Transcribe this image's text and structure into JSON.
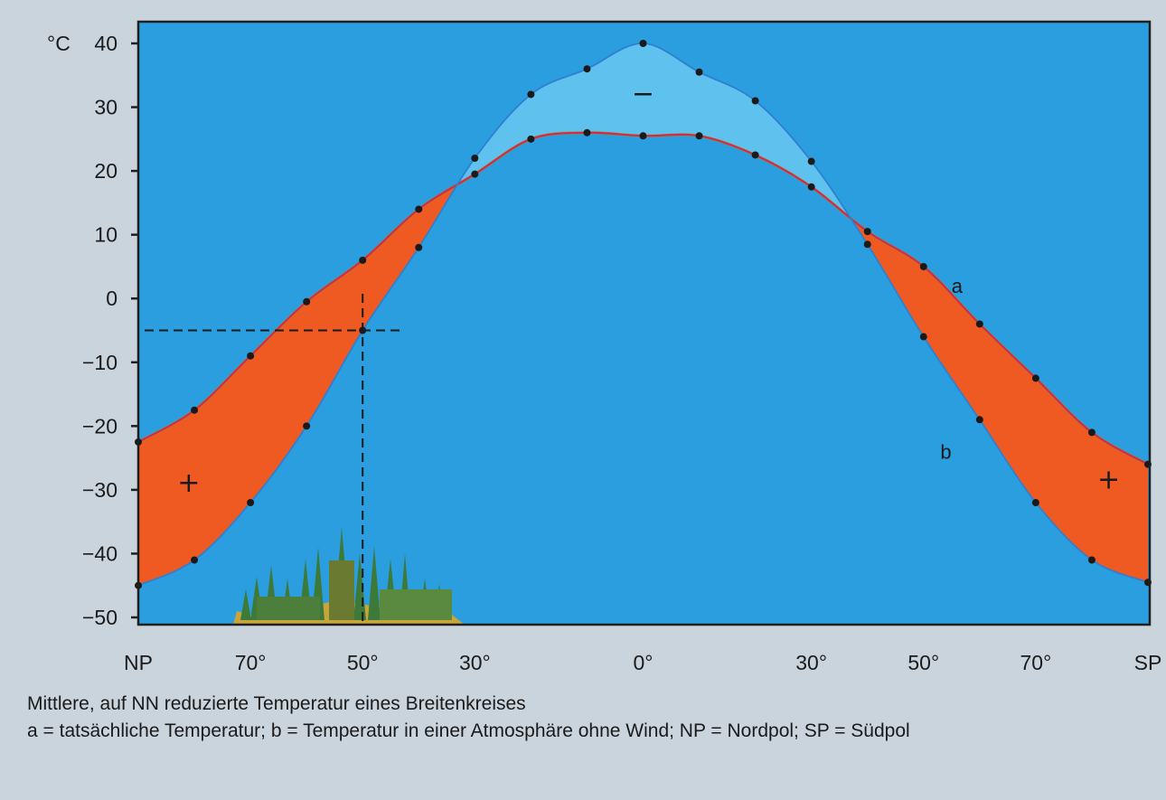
{
  "chart_data": {
    "type": "area",
    "unit_label": "°C",
    "y_ticks": [
      "40",
      "30",
      "20",
      "10",
      "0",
      "−10",
      "−20",
      "−30",
      "−40",
      "−50"
    ],
    "ylim": [
      -50,
      40
    ],
    "x_ticks": [
      "NP",
      "70°",
      "50°",
      "30°",
      "0°",
      "30°",
      "50°",
      "70°",
      "SP"
    ],
    "x_positions": [
      -90,
      -70,
      -50,
      -30,
      0,
      30,
      50,
      70,
      90
    ],
    "x_domain": [
      -90,
      90
    ],
    "series": [
      {
        "name": "a",
        "color": "#d8284a",
        "points": [
          [
            -90,
            -22.5
          ],
          [
            -80,
            -17.5
          ],
          [
            -70,
            -9
          ],
          [
            -60,
            -0.5
          ],
          [
            -50,
            6
          ],
          [
            -40,
            14
          ],
          [
            -30,
            19.5
          ],
          [
            -20,
            25
          ],
          [
            -10,
            26
          ],
          [
            0,
            25.5
          ],
          [
            10,
            25.5
          ],
          [
            20,
            22.5
          ],
          [
            30,
            17.5
          ],
          [
            40,
            10.5
          ],
          [
            50,
            5
          ],
          [
            60,
            -4
          ],
          [
            70,
            -12.5
          ],
          [
            80,
            -21
          ],
          [
            90,
            -26
          ]
        ]
      },
      {
        "name": "b",
        "color": "#2e7fd0",
        "points": [
          [
            -90,
            -45
          ],
          [
            -80,
            -41
          ],
          [
            -70,
            -32
          ],
          [
            -60,
            -20
          ],
          [
            -50,
            -5
          ],
          [
            -40,
            8
          ],
          [
            -30,
            22
          ],
          [
            -20,
            32
          ],
          [
            -10,
            36
          ],
          [
            0,
            40
          ],
          [
            10,
            35.5
          ],
          [
            20,
            31
          ],
          [
            30,
            21.5
          ],
          [
            40,
            8.5
          ],
          [
            50,
            -6
          ],
          [
            60,
            -19
          ],
          [
            70,
            -32
          ],
          [
            80,
            -41
          ],
          [
            90,
            -44.5
          ]
        ]
      }
    ],
    "region_signs": [
      {
        "label": "+",
        "x": -81,
        "y": -29
      },
      {
        "label": "+",
        "x": 83,
        "y": -28.5
      },
      {
        "label": "−",
        "x": 0,
        "y": 32
      }
    ],
    "reference_point": {
      "x": -50,
      "y": -5
    },
    "background": "#2b9ee0",
    "warm_fill": "#ee5a22",
    "cool_fill": "#5fc2ee",
    "grid": false
  },
  "caption": {
    "line1": "Mittlere, auf NN reduzierte Temperatur eines Breitenkreises",
    "line2": "a = tatsächliche Temperatur; b = Temperatur in einer Atmosphäre ohne Wind; NP = Nordpol; SP = Südpol"
  }
}
